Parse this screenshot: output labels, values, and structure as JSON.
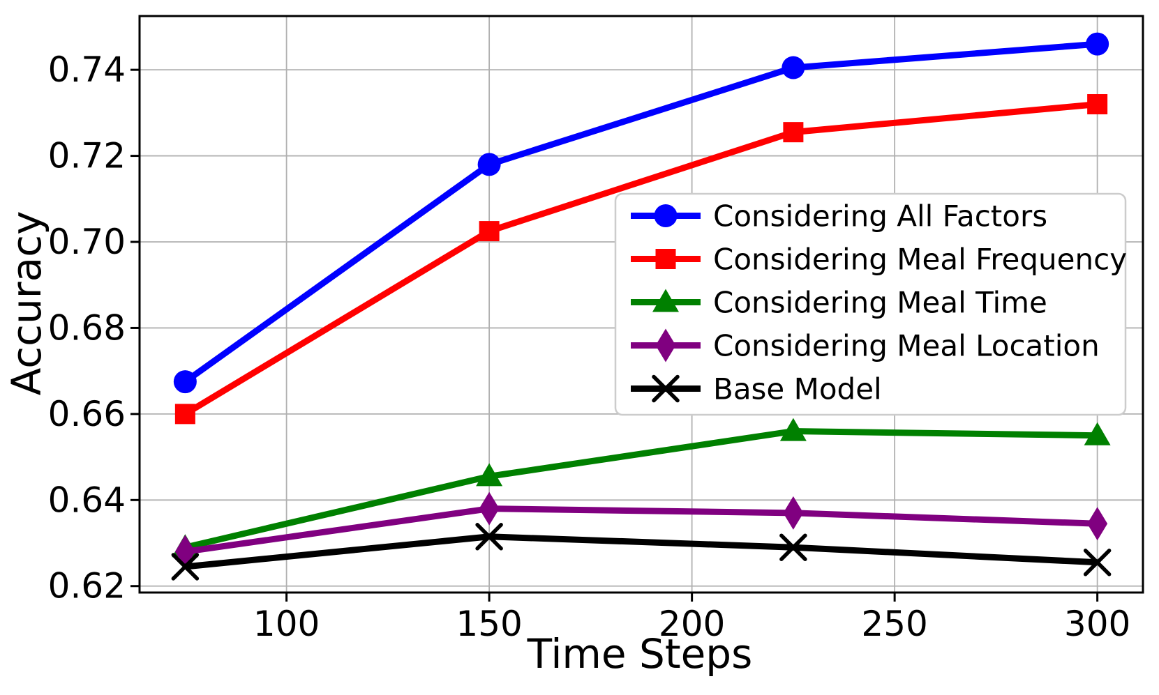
{
  "chart_data": {
    "type": "line",
    "title": "",
    "xlabel": "Time Steps",
    "ylabel": "Accuracy",
    "x": [
      75,
      150,
      225,
      300
    ],
    "series": [
      {
        "name": "Considering All Factors",
        "color": "#0000ff",
        "marker": "circle",
        "values": [
          0.6675,
          0.718,
          0.7405,
          0.746
        ]
      },
      {
        "name": "Considering Meal Frequency",
        "color": "#ff0000",
        "marker": "square",
        "values": [
          0.66,
          0.7025,
          0.7255,
          0.732
        ]
      },
      {
        "name": "Considering Meal Time",
        "color": "#008000",
        "marker": "triangle-up",
        "values": [
          0.629,
          0.6455,
          0.656,
          0.655
        ]
      },
      {
        "name": "Considering Meal Location",
        "color": "#800080",
        "marker": "diamond-thin",
        "values": [
          0.628,
          0.638,
          0.637,
          0.6345
        ]
      },
      {
        "name": "Base Model",
        "color": "#000000",
        "marker": "x",
        "values": [
          0.6245,
          0.6315,
          0.629,
          0.6255
        ]
      }
    ],
    "x_ticks": [
      100,
      150,
      200,
      250,
      300
    ],
    "x_tick_labels": [
      "100",
      "150",
      "200",
      "250",
      "300"
    ],
    "y_ticks": [
      0.62,
      0.64,
      0.66,
      0.68,
      0.7,
      0.72,
      0.74
    ],
    "y_tick_labels": [
      "0.62",
      "0.64",
      "0.66",
      "0.68",
      "0.70",
      "0.72",
      "0.74"
    ],
    "xlim": [
      63.75,
      311.25
    ],
    "ylim": [
      0.6185,
      0.7525
    ],
    "grid": true,
    "grid_color": "#b0b0b0",
    "spine_color": "#000000",
    "background": "#ffffff",
    "legend": {
      "position": "center-right",
      "border_color": "#cccccc",
      "background": "#ffffff",
      "entries": [
        "Considering All Factors",
        "Considering Meal Frequency",
        "Considering Meal Time",
        "Considering Meal Location",
        "Base Model"
      ]
    }
  }
}
